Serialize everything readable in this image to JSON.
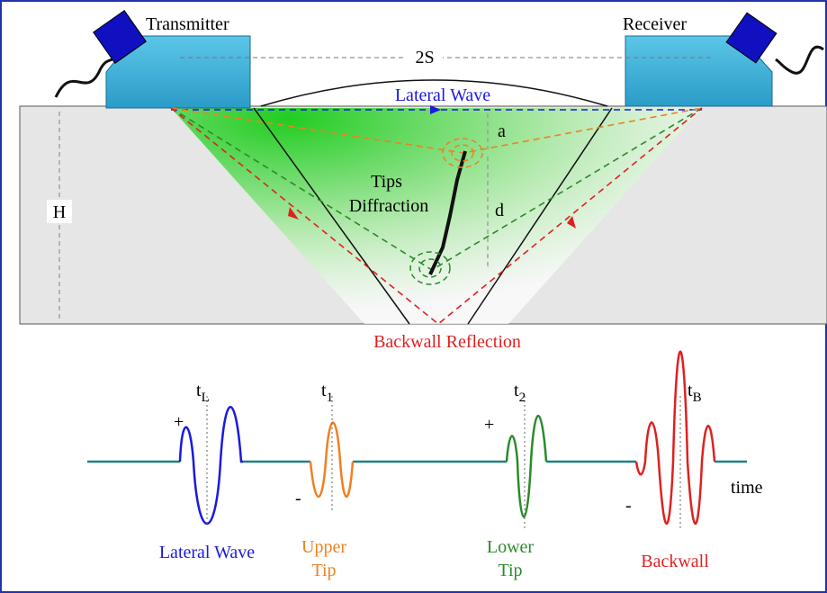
{
  "probes": {
    "transmitter": "Transmitter",
    "receiver": "Receiver",
    "spacing": "2S"
  },
  "labels": {
    "lateral_wave": "Lateral Wave",
    "a": "a",
    "d": "d",
    "h": "H",
    "tips_diffraction": [
      "Tips",
      "Diffraction"
    ],
    "backwall_reflection": "Backwall Reflection"
  },
  "signals": [
    {
      "time_base": "t",
      "time_sub": "L",
      "polarity": "+",
      "caption": [
        "Lateral Wave"
      ]
    },
    {
      "time_base": "t",
      "time_sub": "1",
      "polarity": "-",
      "caption": [
        "Upper",
        "Tip"
      ]
    },
    {
      "time_base": "t",
      "time_sub": "2",
      "polarity": "+",
      "caption": [
        "Lower",
        "Tip"
      ]
    },
    {
      "time_base": "t",
      "time_sub": "B",
      "polarity": "-",
      "caption": [
        "Backwall"
      ]
    }
  ],
  "axis_label": "time"
}
